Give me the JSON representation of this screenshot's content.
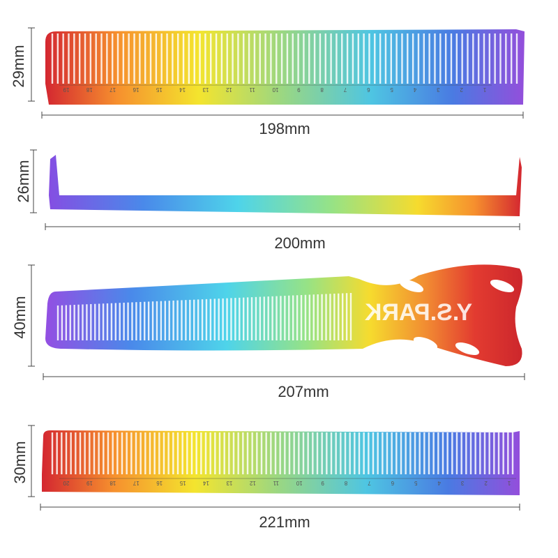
{
  "combs": [
    {
      "height_label": "29mm",
      "length_label": "198mm",
      "ruler": [
        "19",
        "18",
        "17",
        "16",
        "15",
        "14",
        "13",
        "12",
        "11",
        "10",
        "9",
        "8",
        "7",
        "6",
        "5",
        "4",
        "3",
        "2",
        "1"
      ]
    },
    {
      "height_label": "26mm",
      "length_label": "200mm"
    },
    {
      "height_label": "40mm",
      "length_label": "207mm",
      "brand": "Y.S.PARK"
    },
    {
      "height_label": "30mm",
      "length_label": "221mm",
      "ruler": [
        "20",
        "19",
        "18",
        "17",
        "16",
        "15",
        "14",
        "13",
        "12",
        "11",
        "10",
        "9",
        "8",
        "7",
        "6",
        "5",
        "4",
        "3",
        "2",
        "1"
      ]
    }
  ]
}
